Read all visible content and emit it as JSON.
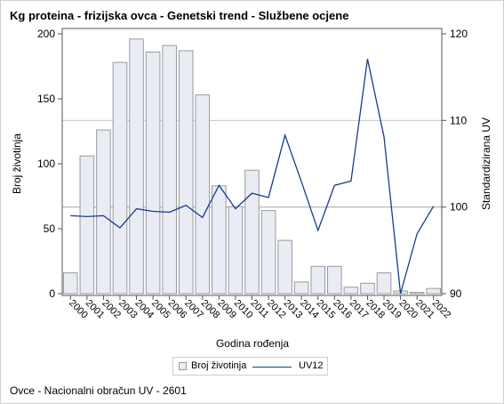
{
  "title": "Kg proteina - frizijska ovca - Genetski trend - Službene ocjene",
  "footnote": "Ovce - Nacionalni obračun UV - 2601",
  "colors": {
    "bar_fill": "#e9ecf2",
    "bar_stroke": "#9a9aa0",
    "line": "#1a3a8f",
    "reference_line": "#bdbdbd",
    "axis": "#555555"
  },
  "chart_data": {
    "type": "bar",
    "xlabel": "Godina rođenja",
    "ylabel": "Broj životinja",
    "y2label": "Standardizirana UV",
    "ylim": [
      0,
      200
    ],
    "y2lim": [
      90,
      120
    ],
    "yticks": [
      "0",
      "50",
      "100",
      "150",
      "200"
    ],
    "y2ticks": [
      "90",
      "100",
      "110",
      "120"
    ],
    "reference_lines_y2": [
      100,
      110
    ],
    "categories": [
      "2000",
      "2001",
      "2002",
      "2003",
      "2004",
      "2005",
      "2006",
      "2007",
      "2008",
      "2009",
      "2010",
      "2011",
      "2012",
      "2013",
      "2014",
      "2015",
      "2016",
      "2017",
      "2018",
      "2019",
      "2020",
      "2021",
      "2022"
    ],
    "series": [
      {
        "name": "Broj životinja",
        "type": "bar",
        "axis": "left",
        "values": [
          16,
          106,
          126,
          178,
          196,
          186,
          191,
          187,
          153,
          83,
          67,
          95,
          64,
          41,
          9,
          21,
          21,
          5,
          8,
          16,
          2,
          1,
          4
        ]
      },
      {
        "name": "UV12",
        "type": "line",
        "axis": "right",
        "values": [
          99.0,
          98.9,
          99.0,
          97.6,
          99.8,
          99.5,
          99.4,
          100.2,
          98.8,
          102.5,
          99.8,
          101.6,
          101.1,
          108.3,
          102.9,
          97.3,
          102.5,
          103.0,
          117.1,
          108.1,
          90.0,
          96.9,
          100.1
        ]
      }
    ],
    "grid": false,
    "legend_position": "bottom"
  }
}
